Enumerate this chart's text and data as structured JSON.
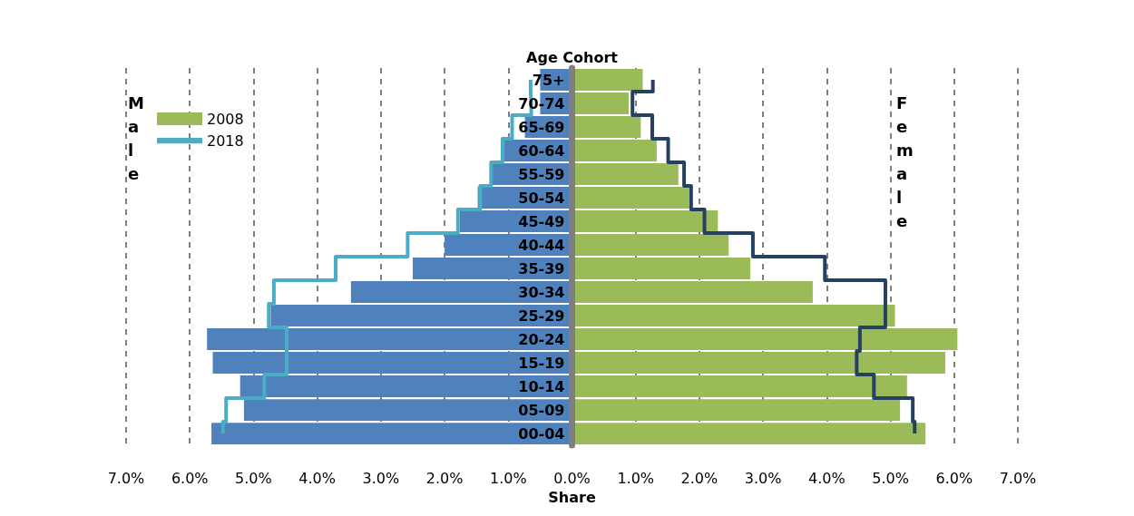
{
  "chart_data": {
    "type": "bar",
    "orientation": "horizontal",
    "xlabel": "Share",
    "ylabel": "Age Cohort",
    "categories": [
      "75+",
      "70-74",
      "65-69",
      "60-64",
      "55-59",
      "50-54",
      "45-49",
      "40-44",
      "35-39",
      "30-34",
      "25-29",
      "20-24",
      "15-19",
      "10-14",
      "05-09",
      "00-04"
    ],
    "series": [
      {
        "color": "#4f81bd",
        "values": [
          -0.5,
          -0.5,
          -0.74,
          -1.06,
          -1.27,
          -1.48,
          -1.76,
          -2.0,
          -2.5,
          -3.47,
          -4.73,
          -5.73,
          -5.64,
          -5.21,
          -5.15,
          -5.66
        ]
      },
      {
        "name": "2008",
        "color": "#9bbb59",
        "values": [
          1.11,
          0.89,
          1.08,
          1.33,
          1.67,
          1.84,
          2.29,
          2.46,
          2.8,
          3.78,
          5.07,
          6.05,
          5.86,
          5.26,
          5.15,
          5.55
        ]
      },
      {
        "type": "step",
        "name": "2018",
        "color": "#4bacc6",
        "values": [
          -0.65,
          -0.64,
          -0.94,
          -1.09,
          -1.27,
          -1.44,
          -1.79,
          -2.58,
          -3.71,
          -4.68,
          -4.76,
          -4.48,
          -4.48,
          -4.83,
          -5.43,
          -5.48
        ]
      },
      {
        "type": "step",
        "color": "#254061",
        "values": [
          1.27,
          0.95,
          1.26,
          1.51,
          1.76,
          1.87,
          2.08,
          2.84,
          3.97,
          4.92,
          4.92,
          4.52,
          4.47,
          4.74,
          5.35,
          5.38
        ]
      }
    ],
    "xlim": [
      -7,
      7
    ],
    "xticks": [
      {
        "value": -7,
        "label": "7.0%"
      },
      {
        "value": -6,
        "label": "6.0%"
      },
      {
        "value": -5,
        "label": "5.0%"
      },
      {
        "value": -4,
        "label": "4.0%"
      },
      {
        "value": -3,
        "label": "3.0%"
      },
      {
        "value": -2,
        "label": "2.0%"
      },
      {
        "value": -1,
        "label": "1.0%"
      },
      {
        "value": 0,
        "label": "0.0%"
      },
      {
        "value": 1,
        "label": "1.0%"
      },
      {
        "value": 2,
        "label": "2.0%"
      },
      {
        "value": 3,
        "label": "3.0%"
      },
      {
        "value": 4,
        "label": "4.0%"
      },
      {
        "value": 5,
        "label": "5.0%"
      },
      {
        "value": 6,
        "label": "6.0%"
      },
      {
        "value": 7,
        "label": "7.0%"
      }
    ],
    "grid": "x",
    "legend": "top left",
    "stacked": true,
    "annotations": [
      "Male",
      "Female"
    ]
  }
}
